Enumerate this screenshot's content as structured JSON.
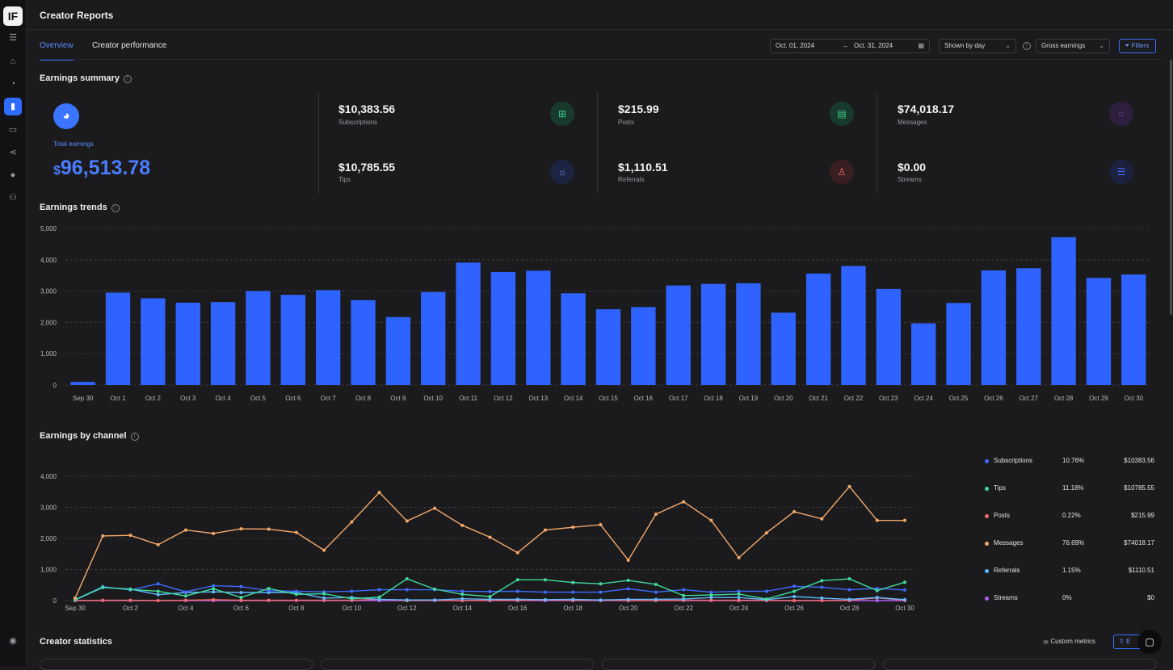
{
  "app": {
    "title": "Creator Reports",
    "logo_text": "IF",
    "nav_icons": [
      "menu-icon",
      "home-icon",
      "creator-icon",
      "reports-icon",
      "analytics-icon",
      "share-icon",
      "profile-icon",
      "team-icon",
      "help-icon"
    ]
  },
  "tabs": [
    {
      "label": "Overview",
      "active": true
    },
    {
      "label": "Creator performance",
      "active": false
    }
  ],
  "controls": {
    "date_from": "Oct. 01, 2024",
    "date_to": "Oct. 31, 2024",
    "granularity": "Shown by day",
    "earnings_type": "Gross earnings",
    "filters_label": "Filters"
  },
  "earnings_summary": {
    "title": "Earnings summary",
    "total_label": "Total earnings",
    "total_currency": "$",
    "total_value": "96,513.78",
    "metrics": [
      {
        "value": "$10,383.56",
        "label": "Subscriptions",
        "icon": "subscriptions-icon",
        "color": "#3fcf8e"
      },
      {
        "value": "$215.99",
        "label": "Posts",
        "icon": "posts-icon",
        "color": "#3fcf8e"
      },
      {
        "value": "$74,018.17",
        "label": "Messages",
        "icon": "messages-icon",
        "color": "#b06cf0"
      },
      {
        "value": "$10,785.55",
        "label": "Tips",
        "icon": "tips-icon",
        "color": "#6f95ff"
      },
      {
        "value": "$1,110.51",
        "label": "Referrals",
        "icon": "referrals-icon",
        "color": "#f06a6a"
      },
      {
        "value": "$0.00",
        "label": "Streams",
        "icon": "streams-icon",
        "color": "#4a6cff"
      }
    ]
  },
  "trends": {
    "title": "Earnings trends"
  },
  "channels": {
    "title": "Earnings by channel",
    "legend": [
      {
        "name": "Subscriptions",
        "percent": "10.76%",
        "amount": "$10383.56",
        "color": "#3f6bff"
      },
      {
        "name": "Tips",
        "percent": "11.18%",
        "amount": "$10785.55",
        "color": "#3fdc9c"
      },
      {
        "name": "Posts",
        "percent": "0.22%",
        "amount": "$215.99",
        "color": "#f06a6a"
      },
      {
        "name": "Messages",
        "percent": "76.69%",
        "amount": "$74018.17",
        "color": "#f5a96a"
      },
      {
        "name": "Referrals",
        "percent": "1.15%",
        "amount": "$1110.51",
        "color": "#5fb8ff"
      },
      {
        "name": "Streams",
        "percent": "0%",
        "amount": "$0",
        "color": "#b45cf5"
      }
    ]
  },
  "statistics": {
    "title": "Creator statistics",
    "custom_metrics_label": "Custom metrics",
    "export_label": "E"
  },
  "chart_data": [
    {
      "type": "bar",
      "categories": [
        "Sep 30",
        "Oct 1",
        "Oct 2",
        "Oct 3",
        "Oct 4",
        "Oct 5",
        "Oct 6",
        "Oct 7",
        "Oct 8",
        "Oct 9",
        "Oct 10",
        "Oct 11",
        "Oct 12",
        "Oct 13",
        "Oct 14",
        "Oct 15",
        "Oct 16",
        "Oct 17",
        "Oct 18",
        "Oct 19",
        "Oct 20",
        "Oct 21",
        "Oct 22",
        "Oct 23",
        "Oct 24",
        "Oct 25",
        "Oct 26",
        "Oct 27",
        "Oct 28",
        "Oct 29",
        "Oct 30"
      ],
      "values": [
        100,
        2950,
        2770,
        2630,
        2650,
        3000,
        2880,
        3030,
        2710,
        2170,
        2970,
        3910,
        3610,
        3650,
        2930,
        2420,
        2490,
        3180,
        3230,
        3250,
        2310,
        3560,
        3800,
        3070,
        1970,
        2620,
        3660,
        3730,
        4720,
        3420,
        3530
      ],
      "yticks": [
        "0",
        "1,000",
        "2,000",
        "3,000",
        "4,000",
        "5,000"
      ],
      "ylim": [
        0,
        5000
      ],
      "grid": true,
      "color": "#2f63ff"
    },
    {
      "type": "line",
      "x": [
        "Sep 30",
        "Oct 1",
        "Oct 2",
        "Oct 3",
        "Oct 4",
        "Oct 5",
        "Oct 6",
        "Oct 7",
        "Oct 8",
        "Oct 9",
        "Oct 10",
        "Oct 11",
        "Oct 12",
        "Oct 13",
        "Oct 14",
        "Oct 15",
        "Oct 16",
        "Oct 17",
        "Oct 18",
        "Oct 19",
        "Oct 20",
        "Oct 21",
        "Oct 22",
        "Oct 23",
        "Oct 24",
        "Oct 25",
        "Oct 26",
        "Oct 27",
        "Oct 28",
        "Oct 29",
        "Oct 30"
      ],
      "xticks": [
        "Sep 30",
        "Oct 2",
        "Oct 4",
        "Oct 6",
        "Oct 8",
        "Oct 10",
        "Oct 12",
        "Oct 14",
        "Oct 16",
        "Oct 18",
        "Oct 20",
        "Oct 22",
        "Oct 24",
        "Oct 26",
        "Oct 28",
        "Oct 30"
      ],
      "yticks": [
        "0",
        "1,000",
        "2,000",
        "3,000",
        "4,000"
      ],
      "ylim": [
        0,
        4000
      ],
      "grid": true,
      "series": [
        {
          "name": "Messages",
          "color": "#f5a96a",
          "values": [
            80,
            2080,
            2100,
            1800,
            2270,
            2160,
            2310,
            2300,
            2190,
            1620,
            2530,
            3480,
            2560,
            2970,
            2420,
            2040,
            1540,
            2270,
            2360,
            2440,
            1300,
            2780,
            3180,
            2580,
            1380,
            2180,
            2860,
            2630,
            3670,
            2580,
            2580
          ]
        },
        {
          "name": "Tips",
          "color": "#3fdc9c",
          "values": [
            30,
            430,
            360,
            300,
            150,
            380,
            100,
            390,
            200,
            220,
            60,
            110,
            700,
            370,
            200,
            130,
            670,
            670,
            580,
            540,
            650,
            520,
            160,
            180,
            210,
            50,
            300,
            640,
            700,
            320,
            590
          ]
        },
        {
          "name": "Subscriptions",
          "color": "#3f6bff",
          "values": [
            30,
            450,
            340,
            540,
            280,
            480,
            450,
            320,
            300,
            280,
            300,
            350,
            350,
            350,
            300,
            290,
            300,
            270,
            270,
            270,
            380,
            270,
            350,
            270,
            300,
            300,
            460,
            430,
            350,
            390,
            340
          ]
        },
        {
          "name": "Referrals",
          "color": "#5fb8ff",
          "values": [
            20,
            420,
            370,
            190,
            260,
            280,
            260,
            260,
            260,
            80,
            100,
            40,
            20,
            20,
            60,
            40,
            40,
            30,
            40,
            20,
            40,
            40,
            50,
            100,
            100,
            30,
            130,
            80,
            40,
            100,
            30
          ]
        },
        {
          "name": "Posts",
          "color": "#f06a6a",
          "values": [
            0,
            10,
            10,
            0,
            10,
            30,
            10,
            10,
            10,
            10,
            10,
            40,
            0,
            10,
            0,
            10,
            10,
            20,
            10,
            10,
            0,
            0,
            10,
            10,
            10,
            10,
            0,
            0,
            10,
            90,
            10
          ]
        },
        {
          "name": "Streams",
          "color": "#b45cf5",
          "values": [
            0,
            0,
            0,
            0,
            0,
            0,
            0,
            0,
            0,
            0,
            0,
            0,
            0,
            0,
            0,
            0,
            0,
            0,
            0,
            0,
            0,
            0,
            0,
            0,
            0,
            0,
            0,
            0,
            0,
            0,
            0
          ]
        }
      ]
    }
  ]
}
